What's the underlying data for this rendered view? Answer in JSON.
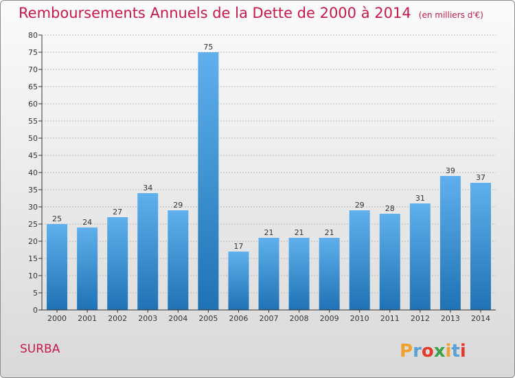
{
  "title": "Remboursements Annuels de la Dette de 2000 à 2014",
  "subtitle": "(en milliers d'€)",
  "town": "SURBA",
  "brand": {
    "name": "Proxiti",
    "colors": [
      "#f2a12c",
      "#5aa0d6",
      "#e33a2c",
      "#3aa04a",
      "#f2a12c",
      "#5aa0d6",
      "#e33a2c"
    ]
  },
  "colors": {
    "title": "#c8184a",
    "bar_top": "#5fb0ec",
    "bar_bottom": "#1f72b4",
    "axis": "#333333",
    "grid": "#bbbbbb"
  },
  "chart_data": {
    "type": "bar",
    "title": "Remboursements Annuels de la Dette de 2000 à 2014",
    "subtitle": "(en milliers d'€)",
    "categories": [
      "2000",
      "2001",
      "2002",
      "2003",
      "2004",
      "2005",
      "2006",
      "2007",
      "2008",
      "2009",
      "2010",
      "2011",
      "2012",
      "2013",
      "2014"
    ],
    "values": [
      25,
      24,
      27,
      34,
      29,
      75,
      17,
      21,
      21,
      21,
      29,
      28,
      31,
      39,
      37
    ],
    "ylim": [
      0,
      80
    ],
    "yticks": [
      0,
      5,
      10,
      15,
      20,
      25,
      30,
      35,
      40,
      45,
      50,
      55,
      60,
      65,
      70,
      75,
      80
    ],
    "grid": true,
    "data_labels": true
  }
}
